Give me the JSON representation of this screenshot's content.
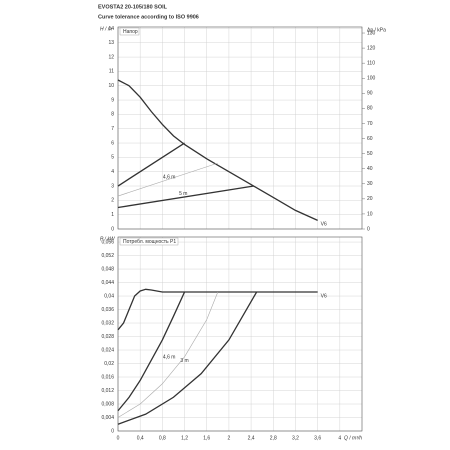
{
  "header": {
    "title": "EVOSTA2 20-105/180 SOIL",
    "subtitle": "Curve tolerance according to ISO 9906"
  },
  "chart_data": [
    {
      "type": "line",
      "title": "Напор",
      "ylabel": "H / m",
      "y2label": "Δp / kPa",
      "ylim": [
        0,
        14.1
      ],
      "yticks": [
        0,
        1,
        2,
        3,
        4,
        5,
        6,
        7,
        8,
        9,
        10,
        11,
        12,
        13,
        14
      ],
      "y2lim": [
        0,
        134
      ],
      "y2ticks": [
        0,
        10,
        20,
        30,
        40,
        50,
        60,
        70,
        80,
        90,
        100,
        110,
        120,
        130
      ],
      "xlim": [
        0,
        4.4
      ],
      "grid": true,
      "series": [
        {
          "name": "V6",
          "color": "#333333",
          "x": [
            0,
            0.2,
            0.4,
            0.6,
            0.8,
            1.0,
            1.2,
            1.6,
            2.0,
            2.4,
            2.8,
            3.2,
            3.6
          ],
          "values": [
            10.4,
            10.0,
            9.2,
            8.2,
            7.3,
            6.5,
            5.9,
            4.9,
            4.0,
            3.1,
            2.2,
            1.3,
            0.6
          ]
        },
        {
          "color": "#333333",
          "x": [
            0,
            1.2
          ],
          "values": [
            3,
            6
          ]
        },
        {
          "name": "4,6 m",
          "color": "#aaaaaa",
          "x": [
            0,
            1.8
          ],
          "values": [
            2.3,
            4.6
          ]
        },
        {
          "name": "5 m",
          "color": "#333333",
          "x": [
            0,
            2.45
          ],
          "values": [
            1.5,
            3.0
          ]
        }
      ]
    },
    {
      "type": "line",
      "title": "Потребл. мощность P1",
      "ylabel": "P / kW",
      "xlabel": "Q / m³/h",
      "ylim": [
        0,
        0.0575
      ],
      "yticks": [
        0,
        {
          "value": 0.004,
          "label": "0,004"
        },
        {
          "value": 0.008,
          "label": "0,008"
        },
        {
          "value": 0.012,
          "label": "0,012"
        },
        {
          "value": 0.016,
          "label": "0,016"
        },
        {
          "value": 0.02,
          "label": "0,02"
        },
        {
          "value": 0.024,
          "label": "0,024"
        },
        {
          "value": 0.028,
          "label": "0,028"
        },
        {
          "value": 0.032,
          "label": "0,032"
        },
        {
          "value": 0.036,
          "label": "0,036"
        },
        {
          "value": 0.04,
          "label": "0,04"
        },
        {
          "value": 0.044,
          "label": "0,044"
        },
        {
          "value": 0.048,
          "label": "0,048"
        },
        {
          "value": 0.052,
          "label": "0,052"
        },
        {
          "value": 0.056,
          "label": "0,056"
        }
      ],
      "xlim": [
        0,
        4.4
      ],
      "xticks": [
        0,
        {
          "value": 0.4,
          "label": "0,4"
        },
        {
          "value": 0.8,
          "label": "0,8"
        },
        {
          "value": 1.2,
          "label": "1,2"
        },
        {
          "value": 1.6,
          "label": "1,6"
        },
        2,
        {
          "value": 2.4,
          "label": "2,4"
        },
        {
          "value": 2.8,
          "label": "2,8"
        },
        {
          "value": 3.2,
          "label": "3,2"
        },
        {
          "value": 3.6,
          "label": "3,6"
        },
        4
      ],
      "grid": true,
      "series": [
        {
          "name": "V6",
          "color": "#333333",
          "x": [
            0,
            0.1,
            0.2,
            0.3,
            0.4,
            0.5,
            0.6,
            0.8,
            1.2,
            2,
            2.8,
            3.6
          ],
          "values": [
            0.03,
            0.032,
            0.036,
            0.04,
            0.0415,
            0.042,
            0.0418,
            0.0412,
            0.0412,
            0.0412,
            0.0412,
            0.0412
          ]
        },
        {
          "color": "#333333",
          "x": [
            0,
            0.2,
            0.4,
            0.6,
            0.8,
            1.0,
            1.2
          ],
          "values": [
            0.006,
            0.01,
            0.015,
            0.021,
            0.027,
            0.034,
            0.0412
          ]
        },
        {
          "name": "4,6 m",
          "color": "#aaaaaa",
          "x": [
            0,
            0.4,
            0.8,
            1.2,
            1.6,
            1.8
          ],
          "values": [
            0.004,
            0.008,
            0.014,
            0.022,
            0.033,
            0.0412
          ]
        },
        {
          "name": "3 m",
          "color": "#333333",
          "x": [
            0,
            0.5,
            1.0,
            1.5,
            2.0,
            2.5
          ],
          "values": [
            0.002,
            0.005,
            0.01,
            0.017,
            0.027,
            0.0412
          ]
        }
      ]
    }
  ]
}
